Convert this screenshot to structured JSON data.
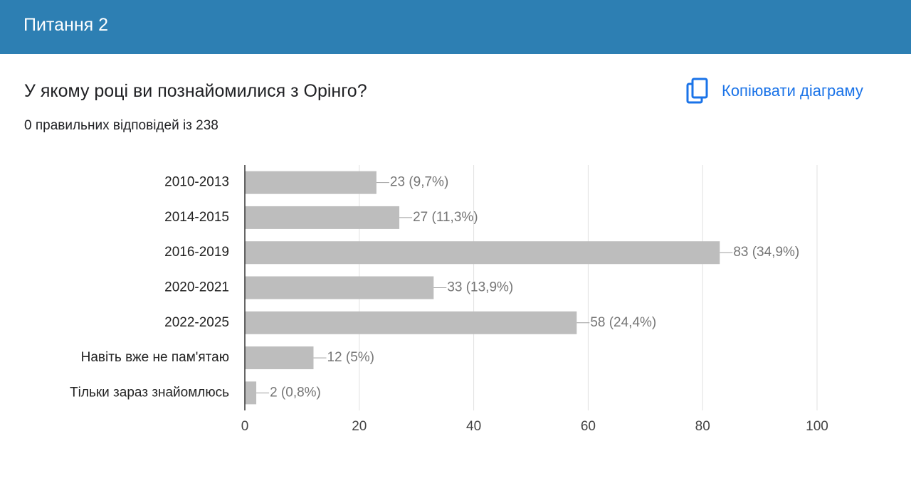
{
  "header": {
    "title": "Питання 2"
  },
  "question": {
    "title": "У якому році ви познайомилися з Орінго?",
    "subtitle": "0 правильних відповідей із 238",
    "copy_button": "Копіювати діаграму"
  },
  "chart_data": {
    "type": "bar",
    "orientation": "horizontal",
    "categories": [
      "2010-2013",
      "2014-2015",
      "2016-2019",
      "2020-2021",
      "2022-2025",
      "Навіть вже не пам'ятаю",
      "Тільки зараз знайомлюсь"
    ],
    "values": [
      23,
      27,
      83,
      33,
      58,
      12,
      2
    ],
    "value_labels": [
      "23 (9,7%)",
      "27 (11,3%)",
      "83 (34,9%)",
      "33 (13,9%)",
      "58 (24,4%)",
      "12 (5%)",
      "2 (0,8%)"
    ],
    "color": "#bdbdbd",
    "xlim": [
      0,
      100
    ],
    "xticks": [
      0,
      20,
      40,
      60,
      80,
      100
    ],
    "grid": true
  }
}
